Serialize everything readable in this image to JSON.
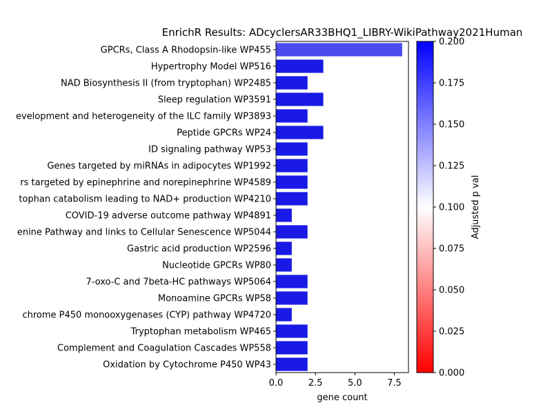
{
  "chart_data": {
    "type": "bar",
    "orientation": "horizontal",
    "title": "EnrichR Results: ADcyclersAR33BHQ1_LIBRY-WikiPathway2021Human",
    "xlabel": "gene count",
    "ylabel": "",
    "xlim": [
      0,
      8.4
    ],
    "xticks": [
      "0.0",
      "2.5",
      "5.0",
      "7.5"
    ],
    "categories": [
      "GPCRs, Class A Rhodopsin-like WP455",
      "Hypertrophy Model WP516",
      "NAD Biosynthesis II (from tryptophan) WP2485",
      "Sleep regulation WP3591",
      "evelopment and heterogeneity of the ILC family WP3893",
      "Peptide GPCRs WP24",
      "ID signaling pathway WP53",
      "Genes targeted by miRNAs in adipocytes WP1992",
      "rs targeted by epinephrine and norepinephrine WP4589",
      "tophan catabolism leading to NAD+ production WP4210",
      "COVID-19 adverse outcome pathway WP4891",
      "enine Pathway and links to Cellular Senescence WP5044",
      "Gastric acid production WP2596",
      "Nucleotide GPCRs WP80",
      "7-oxo-C and 7beta-HC pathways WP5064",
      "Monoamine GPCRs WP58",
      "chrome P450 monooxygenases (CYP) pathway WP4720",
      "Tryptophan metabolism WP465",
      "Complement and Coagulation Cascades WP558",
      "Oxidation by Cytochrome P450 WP43"
    ],
    "values": [
      8,
      3,
      2,
      3,
      2,
      3,
      2,
      2,
      2,
      2,
      1,
      2,
      1,
      1,
      2,
      2,
      1,
      2,
      2,
      2
    ],
    "bar_colors": [
      "#4b4bf0",
      "#1a1ae6",
      "#1a1ae6",
      "#1a1ae6",
      "#1a1ae6",
      "#1a1ae6",
      "#1a1ae6",
      "#1a1ae6",
      "#1a1ae6",
      "#1a1ae6",
      "#1a1ae6",
      "#1a1ae6",
      "#1a1ae6",
      "#1a1ae6",
      "#1a1ae6",
      "#1a1ae6",
      "#1a1ae6",
      "#1a1ae6",
      "#1a1ae6",
      "#1a1ae6"
    ],
    "colorbar": {
      "label": "Adjusted p val",
      "range": [
        0,
        0.2
      ],
      "ticks": [
        "0.000",
        "0.025",
        "0.050",
        "0.075",
        "0.100",
        "0.125",
        "0.150",
        "0.175",
        "0.200"
      ],
      "colors": [
        "#ff0000",
        "#ffffff",
        "#0000ff"
      ]
    },
    "grid": false,
    "legend": "colorbar-right"
  }
}
